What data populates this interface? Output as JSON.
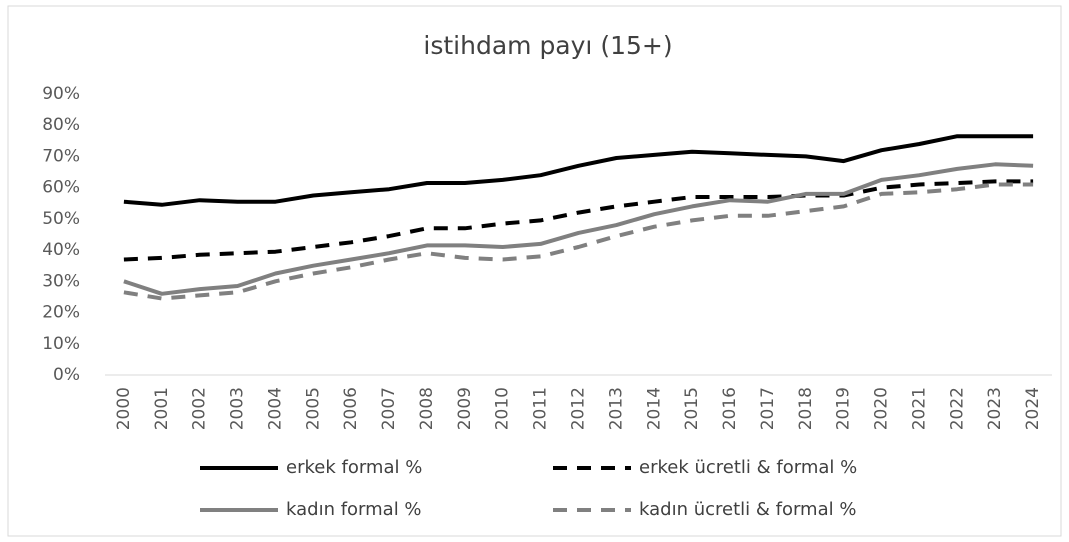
{
  "chart_data": {
    "type": "line",
    "title": "istihdam payı (15+)",
    "categories": [
      "2000",
      "2001",
      "2002",
      "2003",
      "2004",
      "2005",
      "2006",
      "2007",
      "2008",
      "2009",
      "2010",
      "2011",
      "2012",
      "2013",
      "2014",
      "2015",
      "2016",
      "2017",
      "2018",
      "2019",
      "2020",
      "2021",
      "2022",
      "2023",
      "2024"
    ],
    "series": [
      {
        "name": "erkek formal %",
        "color": "#000000",
        "dashed": false,
        "values": [
          55.5,
          54.5,
          56,
          55.5,
          55.5,
          57.5,
          58.5,
          59.5,
          61.5,
          61.5,
          62.5,
          64,
          67,
          69.5,
          70.5,
          71.5,
          71,
          70.5,
          70,
          68.5,
          72,
          74,
          76.5,
          76.5,
          76.5
        ]
      },
      {
        "name": "erkek ücretli & formal %",
        "color": "#000000",
        "dashed": true,
        "values": [
          37,
          37.5,
          38.5,
          39,
          39.5,
          41,
          42.5,
          44.5,
          47,
          47,
          48.5,
          49.5,
          52,
          54,
          55.5,
          57,
          57,
          57,
          57.5,
          57.5,
          60,
          61,
          61.5,
          62,
          62
        ]
      },
      {
        "name": "kadın formal %",
        "color": "#808080",
        "dashed": false,
        "values": [
          30,
          26,
          27.5,
          28.5,
          32.5,
          35,
          37,
          39,
          41.5,
          41.5,
          41,
          42,
          45.5,
          48,
          51.5,
          54,
          56,
          55.5,
          58,
          58,
          62.5,
          64,
          66,
          67.5,
          67
        ]
      },
      {
        "name": "kadın ücretli & formal %",
        "color": "#808080",
        "dashed": true,
        "values": [
          26.5,
          24.5,
          25.5,
          26.5,
          30,
          32.5,
          34.5,
          37,
          39,
          37.5,
          37,
          38,
          41,
          44.5,
          47.5,
          49.5,
          51,
          51,
          52.5,
          54,
          58,
          58.5,
          59.5,
          61,
          61
        ]
      }
    ],
    "ylim": [
      0,
      90
    ],
    "yticks": [
      {
        "value": 0,
        "label": "0%"
      },
      {
        "value": 10,
        "label": "10%"
      },
      {
        "value": 20,
        "label": "20%"
      },
      {
        "value": 30,
        "label": "30%"
      },
      {
        "value": 40,
        "label": "40%"
      },
      {
        "value": 50,
        "label": "50%"
      },
      {
        "value": 60,
        "label": "60%"
      },
      {
        "value": 70,
        "label": "70%"
      },
      {
        "value": 80,
        "label": "80%"
      },
      {
        "value": 90,
        "label": "90%"
      }
    ],
    "grid": false,
    "legend": "bottom"
  }
}
